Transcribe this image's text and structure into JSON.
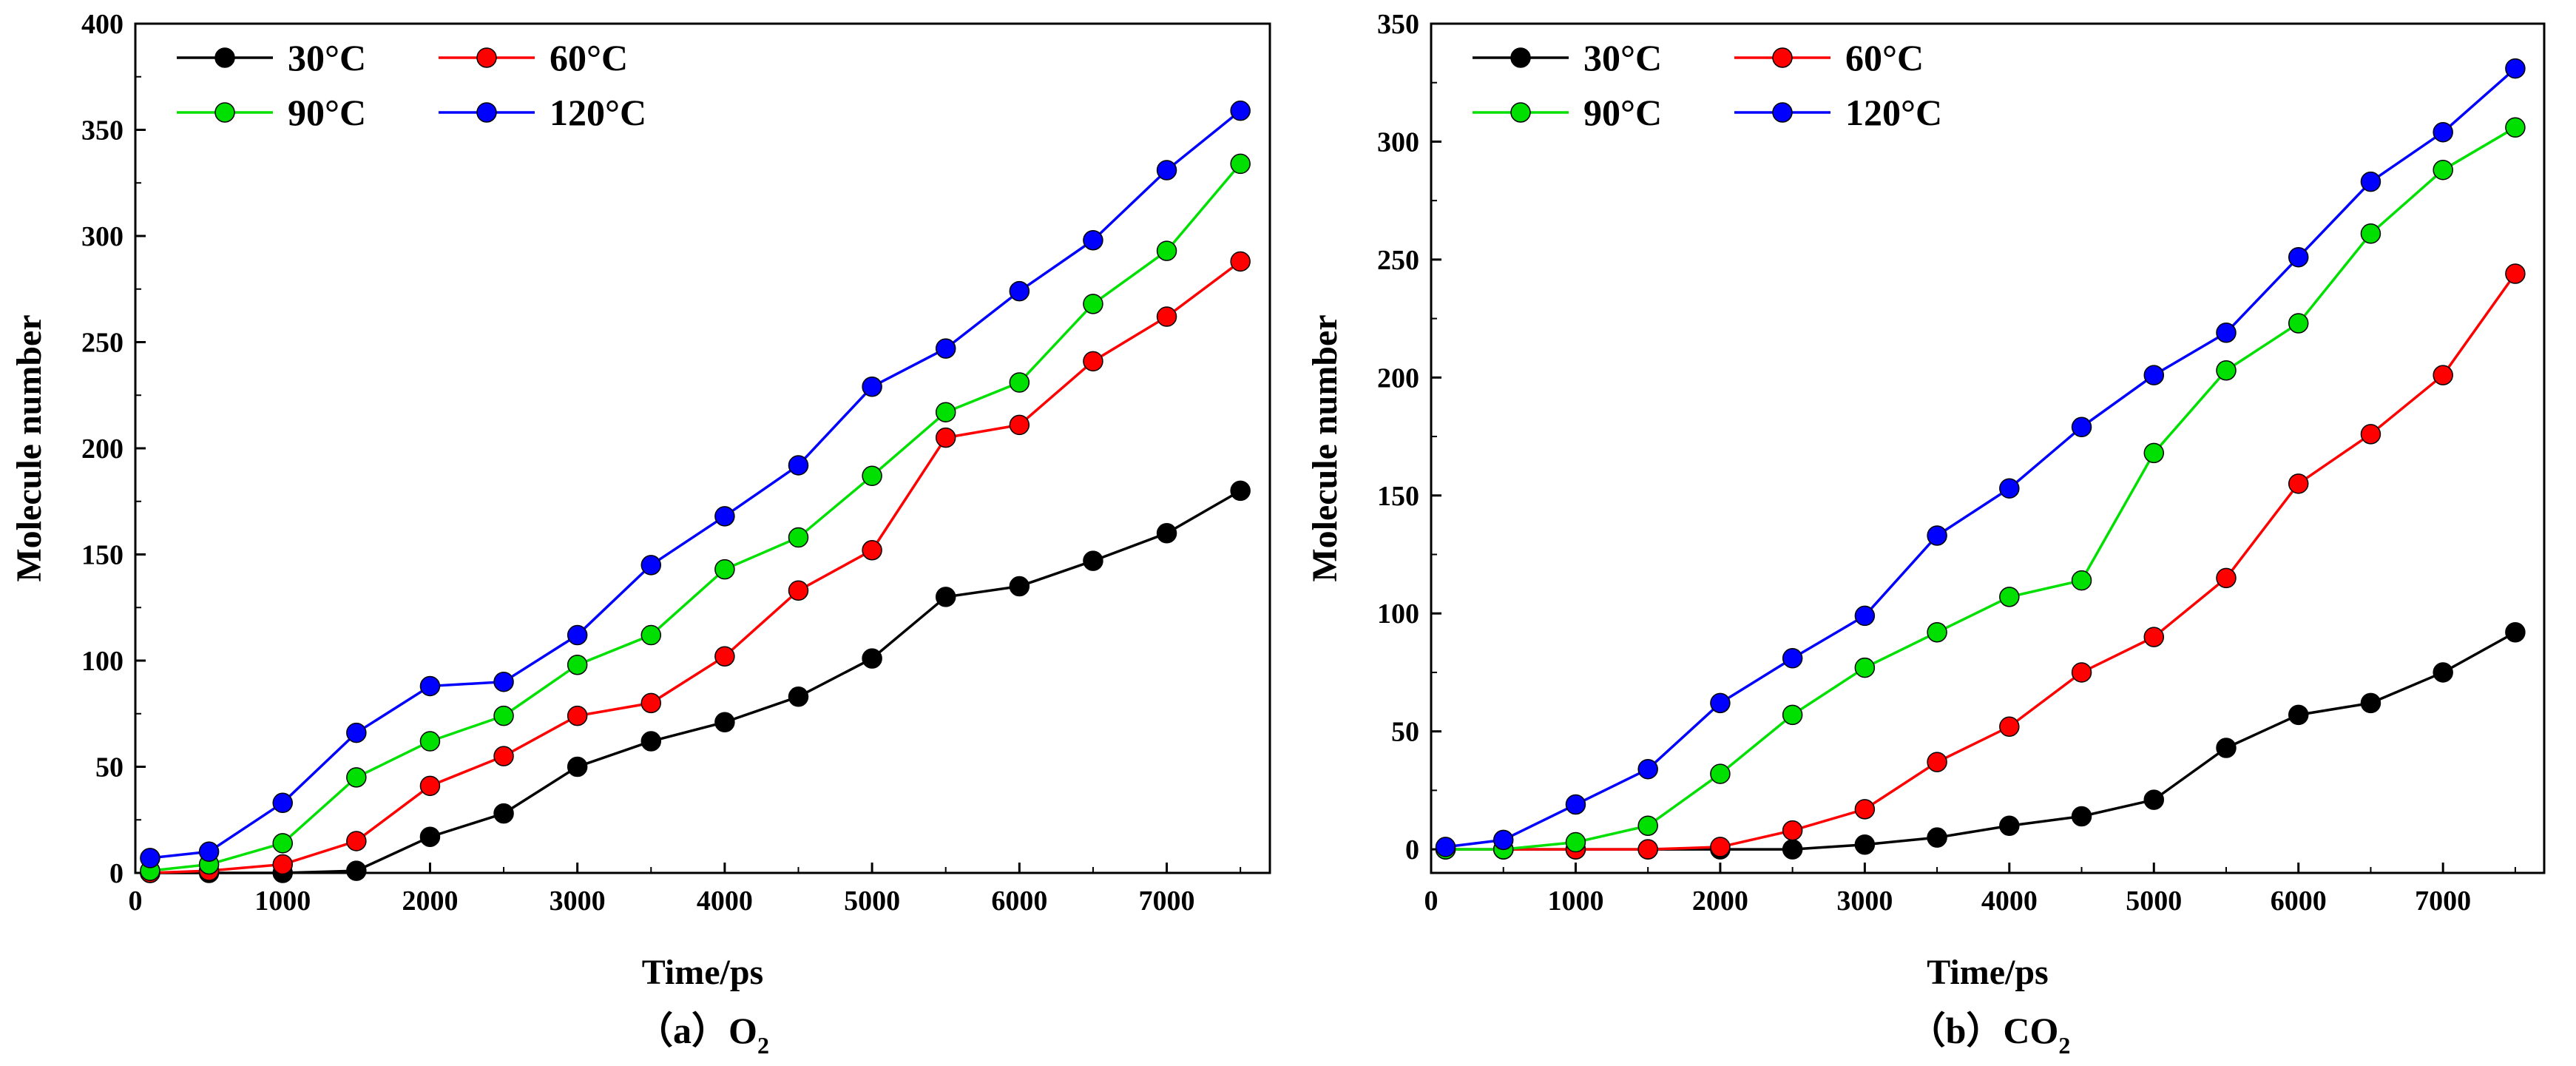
{
  "chart_data": [
    {
      "type": "line",
      "panel_label": "（a）",
      "caption_species": "O",
      "caption_subscript": "2",
      "xlabel": "Time/ps",
      "ylabel": "Molecule number",
      "xlim": [
        0,
        7700
      ],
      "ylim": [
        0,
        400
      ],
      "xticks": [
        0,
        1000,
        2000,
        3000,
        4000,
        5000,
        6000,
        7000
      ],
      "yticks": [
        0,
        50,
        100,
        150,
        200,
        250,
        300,
        350,
        400
      ],
      "legend_position": "top-left",
      "x": [
        100,
        500,
        1000,
        1500,
        2000,
        2500,
        3000,
        3500,
        4000,
        4500,
        5000,
        5500,
        6000,
        6500,
        7000,
        7500
      ],
      "series": [
        {
          "name": "30°C",
          "color": "#000000",
          "values": [
            0,
            0,
            0,
            1,
            17,
            28,
            50,
            62,
            71,
            83,
            101,
            130,
            135,
            147,
            160,
            180
          ]
        },
        {
          "name": "60°C",
          "color": "#ff0000",
          "values": [
            0,
            1,
            4,
            15,
            41,
            55,
            74,
            80,
            102,
            133,
            152,
            205,
            211,
            241,
            262,
            288
          ]
        },
        {
          "name": "90°C",
          "color": "#00e000",
          "values": [
            1,
            4,
            14,
            45,
            62,
            74,
            98,
            112,
            143,
            158,
            187,
            217,
            231,
            268,
            293,
            334
          ]
        },
        {
          "name": "120°C",
          "color": "#0000ff",
          "values": [
            7,
            10,
            33,
            66,
            88,
            90,
            112,
            145,
            168,
            192,
            229,
            247,
            274,
            298,
            331,
            359
          ]
        }
      ]
    },
    {
      "type": "line",
      "panel_label": "（b）",
      "caption_species": "CO",
      "caption_subscript": "2",
      "xlabel": "Time/ps",
      "ylabel": "Molecule number",
      "xlim": [
        0,
        7700
      ],
      "ylim": [
        -10,
        350
      ],
      "xticks": [
        0,
        1000,
        2000,
        3000,
        4000,
        5000,
        6000,
        7000
      ],
      "yticks": [
        0,
        50,
        100,
        150,
        200,
        250,
        300,
        350
      ],
      "legend_position": "top-left",
      "x": [
        100,
        500,
        1000,
        1500,
        2000,
        2500,
        3000,
        3500,
        4000,
        4500,
        5000,
        5500,
        6000,
        6500,
        7000,
        7500
      ],
      "series": [
        {
          "name": "30°C",
          "color": "#000000",
          "values": [
            0,
            0,
            0,
            0,
            0,
            0,
            2,
            5,
            10,
            14,
            21,
            43,
            57,
            62,
            75,
            92
          ]
        },
        {
          "name": "60°C",
          "color": "#ff0000",
          "values": [
            0,
            0,
            0,
            0,
            1,
            8,
            17,
            37,
            52,
            75,
            90,
            115,
            155,
            176,
            201,
            244
          ]
        },
        {
          "name": "90°C",
          "color": "#00e000",
          "values": [
            0,
            0,
            3,
            10,
            32,
            57,
            77,
            92,
            107,
            114,
            168,
            203,
            223,
            261,
            288,
            306
          ]
        },
        {
          "name": "120°C",
          "color": "#0000ff",
          "values": [
            1,
            4,
            19,
            34,
            62,
            81,
            99,
            133,
            153,
            179,
            201,
            219,
            251,
            283,
            304,
            331
          ]
        }
      ]
    }
  ]
}
